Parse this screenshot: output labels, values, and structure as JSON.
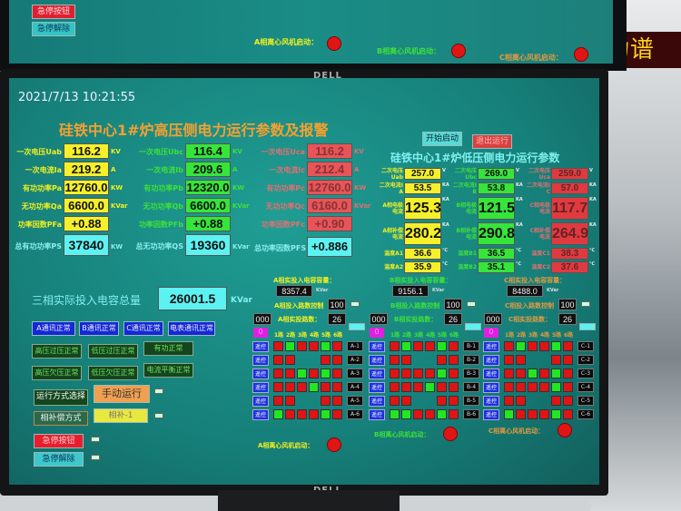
{
  "background": {
    "led_sign": "力谱",
    "brand": "DELL"
  },
  "top_monitor": {
    "estop": "急停按钮",
    "estop_release": "急停解除",
    "fan_a": "A相离心风机启动：",
    "fan_b": "B相离心风机启动：",
    "fan_c": "C相离心风机启动："
  },
  "datetime": "2021/7/13 10:21:55",
  "hv": {
    "title": "硅铁中心1#炉高压侧电力运行参数及报警",
    "a": [
      {
        "label": "一次电压Uab",
        "value": "116.2",
        "unit": "KV"
      },
      {
        "label": "一次电流Ia",
        "value": "219.2",
        "unit": "A"
      },
      {
        "label": "有功功率Pa",
        "value": "12760.0",
        "unit": "KW"
      },
      {
        "label": "无功功率Qa",
        "value": "6600.0",
        "unit": "KVar"
      },
      {
        "label": "功率因数PFa",
        "value": "+0.88",
        "unit": ""
      }
    ],
    "b": [
      {
        "label": "一次电压Ubc",
        "value": "116.4",
        "unit": "KV"
      },
      {
        "label": "一次电流Ib",
        "value": "209.6",
        "unit": "A"
      },
      {
        "label": "有功功率Pb",
        "value": "12320.0",
        "unit": "KW"
      },
      {
        "label": "无功功率Qb",
        "value": "6600.0",
        "unit": "KVar"
      },
      {
        "label": "功率因数PFb",
        "value": "+0.88",
        "unit": ""
      }
    ],
    "c": [
      {
        "label": "一次电压Uca",
        "value": "116.2",
        "unit": "KV"
      },
      {
        "label": "一次电流Ic",
        "value": "212.4",
        "unit": "A"
      },
      {
        "label": "有功功率Pc",
        "value": "12760.0",
        "unit": "KW"
      },
      {
        "label": "无功功率Qc",
        "value": "6160.0",
        "unit": "KVar"
      },
      {
        "label": "功率因数PFc",
        "value": "+0.90",
        "unit": ""
      }
    ],
    "total_p": {
      "label": "总有功功率PS",
      "value": "37840",
      "unit": "KW"
    },
    "total_q": {
      "label": "总无功功率QS",
      "value": "19360",
      "unit": "KVar"
    },
    "total_pf": {
      "label": "总功率因数PFS",
      "value": "+0.886"
    }
  },
  "controls": {
    "start": "开始启动",
    "exit": "退出运行"
  },
  "lv": {
    "title": "硅铁中心1#炉低压侧电力运行参数",
    "a": [
      {
        "label": "二次电压Uab",
        "value": "257.0",
        "unit": "V"
      },
      {
        "label": "二次电流IA",
        "value": "53.5",
        "unit": "KA"
      },
      {
        "label": "A相电极电流",
        "value": "125.3",
        "unit": "KA"
      },
      {
        "label": "A相补偿电流",
        "value": "280.2",
        "unit": "KA"
      },
      {
        "label": "温度A1",
        "value": "36.6",
        "unit": "℃"
      },
      {
        "label": "温度A2",
        "value": "35.9",
        "unit": "℃"
      }
    ],
    "b": [
      {
        "label": "二次电压Ubc",
        "value": "269.0",
        "unit": "V"
      },
      {
        "label": "二次电流IB",
        "value": "53.8",
        "unit": "KA"
      },
      {
        "label": "B相电极电流",
        "value": "121.5",
        "unit": "KA"
      },
      {
        "label": "B相补偿电流",
        "value": "290.8",
        "unit": "KA"
      },
      {
        "label": "温度B1",
        "value": "36.5",
        "unit": "℃"
      },
      {
        "label": "温度B2",
        "value": "35.1",
        "unit": "℃"
      }
    ],
    "c": [
      {
        "label": "二次电压Uca",
        "value": "259.0",
        "unit": "V"
      },
      {
        "label": "二次电流IC",
        "value": "57.0",
        "unit": "KA"
      },
      {
        "label": "C相电极电流",
        "value": "117.7",
        "unit": "KA"
      },
      {
        "label": "C相补偿电流",
        "value": "264.9",
        "unit": "KA"
      },
      {
        "label": "温度C1",
        "value": "38.3",
        "unit": "℃"
      },
      {
        "label": "温度C2",
        "value": "37.6",
        "unit": "℃"
      }
    ]
  },
  "capacity": {
    "label": "三相实际投入电容总量",
    "value": "26001.5",
    "unit": "KVar"
  },
  "status": [
    "A通讯正常",
    "B通讯正常",
    "C通讯正常",
    "电表通讯正常",
    "高压过压正常",
    "低压过压正常",
    "有功正常",
    "高压欠压正常",
    "低压欠压正常",
    "电流平衡正常"
  ],
  "mode": {
    "select": "运行方式选择",
    "manual": "手动运行",
    "comp_mode": "相补偿方式",
    "comp_value": "相补-1",
    "estop": "急停按钮",
    "estop_release": "急停解除"
  },
  "phases": [
    {
      "cap_label": "A相实投入电容容量：",
      "cap_value": "8357.4",
      "cap_unit": "KVar",
      "ctrl_label": "A相投入路数控制",
      "ctrl_value": "100",
      "actual_label": "A相实投路数：",
      "actual_value": "26",
      "counter": "000",
      "pink": "0",
      "routes": [
        "1路",
        "2路",
        "3路",
        "4路",
        "5路",
        "6路"
      ],
      "remote": "遥控",
      "tags": [
        "A-1",
        "A-2",
        "A-3",
        "A-4",
        "A-5",
        "A-6"
      ],
      "fan": "A相离心风机启动：",
      "color": "#f0f020",
      "grid": [
        "rgrrgr",
        "rr..rr",
        "rrgrgr",
        "rrrgrr",
        "rr..rr",
        "grrrgr"
      ]
    },
    {
      "cap_label": "B相实投入电容容量：",
      "cap_value": "9156.1",
      "cap_unit": "KVar",
      "ctrl_label": "B相投入路数控制",
      "ctrl_value": "100",
      "actual_label": "B相实投路数：",
      "actual_value": "26",
      "counter": "000",
      "pink": "0",
      "routes": [
        "1路",
        "2路",
        "3路",
        "4路",
        "5路",
        "6路"
      ],
      "remote": "遥控",
      "tags": [
        "B-1",
        "B-2",
        "B-3",
        "B-4",
        "B-5",
        "B-6"
      ],
      "fan": "B相离心风机启动：",
      "color": "#3ee03a",
      "grid": [
        "rgrrgr",
        "rr..rr",
        "rrrrgr",
        "rrrgrr",
        "rr..rr",
        "ggrrgr"
      ]
    },
    {
      "cap_label": "C相实投入电容容量：",
      "cap_value": "8488.0",
      "cap_unit": "KVar",
      "ctrl_label": "C相投入路数控制",
      "ctrl_value": "100",
      "actual_label": "C相实投路数：",
      "actual_value": "26",
      "counter": "000",
      "pink": "0",
      "routes": [
        "1路",
        "2路",
        "3路",
        "4路",
        "5路",
        "6路"
      ],
      "remote": "遥控",
      "tags": [
        "C-1",
        "C-2",
        "C-3",
        "C-4",
        "C-5",
        "C-6"
      ],
      "fan": "C相离心风机启动：",
      "color": "#e09a40",
      "grid": [
        "rgrrgr",
        "rr..rr",
        "rrgrgr",
        "rrrrgr",
        "rr..rr",
        "grrrgr"
      ]
    }
  ],
  "colors": {
    "hv_title": "#f5a030",
    "lv_title": "#7ff0f0",
    "screen_bg": "#1a8d86"
  }
}
